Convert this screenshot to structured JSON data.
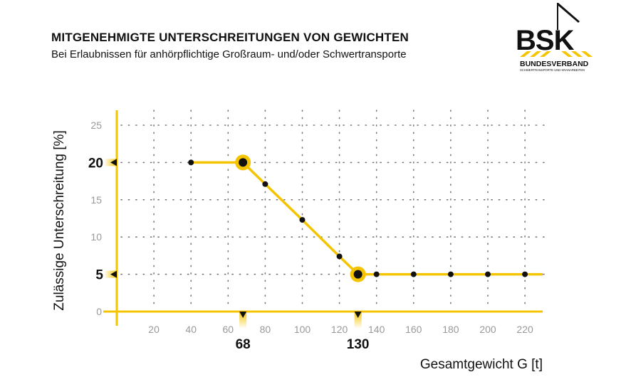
{
  "header": {
    "title": "MITGENEHMIGTE UNTERSCHREITUNGEN VON GEWICHTEN",
    "subtitle": "Bei Erlaubnissen für anhörpflichtige Großraum- und/oder Schwertransporte"
  },
  "logo": {
    "mark": "BSK",
    "name": "BUNDESVERBAND",
    "tagline": "SCHWERTRANSPORTE UND KRANARBEITEN"
  },
  "colors": {
    "accent": "#f5c400",
    "line": "#f5c400",
    "point": "#111111",
    "grid": "#777777",
    "tick": "#999999"
  },
  "chart_data": {
    "type": "line",
    "xlabel": "Gesamtgewicht G [t]",
    "ylabel": "Zulässige Unterschreitung [%]",
    "xlim": [
      0,
      230
    ],
    "ylim": [
      0,
      27
    ],
    "x_ticks": [
      20,
      40,
      60,
      80,
      100,
      120,
      140,
      160,
      180,
      200,
      220
    ],
    "y_ticks": [
      0,
      10,
      15,
      25
    ],
    "highlight_y": [
      20,
      5
    ],
    "highlight_x": [
      68,
      130
    ],
    "grid": true,
    "series": [
      {
        "name": "Unterschreitung",
        "x": [
          40,
          68,
          80,
          100,
          120,
          130,
          140,
          160,
          180,
          200,
          220
        ],
        "y": [
          20,
          20,
          17.1,
          12.3,
          7.4,
          5,
          5,
          5,
          5,
          5,
          5
        ]
      }
    ],
    "key_points": [
      {
        "x": 68,
        "y": 20
      },
      {
        "x": 130,
        "y": 5
      }
    ]
  }
}
